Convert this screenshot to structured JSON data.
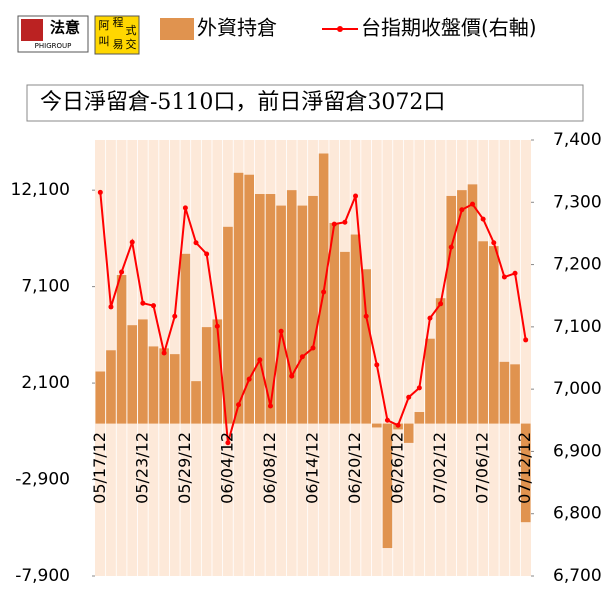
{
  "logos": {
    "left_mark": "法意",
    "left_sub": "PHIGROUP",
    "right_chars": [
      "阿",
      "程",
      "式",
      "叫",
      "易",
      "交"
    ]
  },
  "chart_data": {
    "type": "bar-line",
    "title": "今日淨留倉-5110口，前日淨留倉3072口",
    "categories": [
      "05/17/12",
      null,
      null,
      null,
      "05/23/12",
      null,
      null,
      null,
      "05/29/12",
      null,
      null,
      null,
      "06/04/12",
      null,
      null,
      null,
      "06/08/12",
      null,
      null,
      null,
      "06/14/12",
      null,
      null,
      null,
      "06/20/12",
      null,
      null,
      null,
      "06/26/12",
      null,
      null,
      null,
      "07/02/12",
      null,
      null,
      null,
      "07/06/12",
      null,
      null,
      null,
      "07/12/12"
    ],
    "series": [
      {
        "name": "外資持倉",
        "type": "bar",
        "color": "#e0934f",
        "values": [
          2700,
          3800,
          7700,
          5100,
          5400,
          4000,
          3900,
          3600,
          8800,
          2200,
          5000,
          5400,
          10200,
          13000,
          12900,
          11900,
          11900,
          11300,
          12100,
          11300,
          11800,
          14000,
          10400,
          8900,
          9800,
          8000,
          -200,
          -6450,
          -300,
          -1000,
          600,
          4400,
          6500,
          11800,
          12100,
          12400,
          9450,
          9200,
          3200,
          3072,
          -5110
        ]
      },
      {
        "name": "台指期收盤價(右軸)",
        "type": "line",
        "axis": "y2",
        "color": "#ff0000",
        "values": [
          7316,
          7132,
          7188,
          7236,
          7138,
          7134,
          7058,
          7117,
          7291,
          7235,
          7217,
          7101,
          6914,
          6975,
          7016,
          7047,
          6973,
          7093,
          7021,
          7052,
          7066,
          7156,
          7265,
          7268,
          7310,
          7117,
          7039,
          6950,
          6942,
          6987,
          7002,
          7114,
          7137,
          7228,
          7288,
          7297,
          7273,
          7235,
          7180,
          7186,
          7079
        ]
      }
    ],
    "ylim": [
      -7900,
      14700
    ],
    "yticks": [
      {
        "value": -7900,
        "label": "-7,900"
      },
      {
        "value": -2900,
        "label": "-2,900"
      },
      {
        "value": 2100,
        "label": "2,100"
      },
      {
        "value": 7100,
        "label": "7,100"
      },
      {
        "value": 12100,
        "label": "12,100"
      }
    ],
    "y2lim": [
      6700,
      7400
    ],
    "y2ticks": [
      {
        "value": 6700,
        "label": "6,700"
      },
      {
        "value": 6800,
        "label": "6,800"
      },
      {
        "value": 6900,
        "label": "6,900"
      },
      {
        "value": 7000,
        "label": "7,000"
      },
      {
        "value": 7100,
        "label": "7,100"
      },
      {
        "value": 7200,
        "label": "7,200"
      },
      {
        "value": 7300,
        "label": "7,300"
      },
      {
        "value": 7400,
        "label": "7,400"
      }
    ],
    "background": "#fde9d9"
  }
}
